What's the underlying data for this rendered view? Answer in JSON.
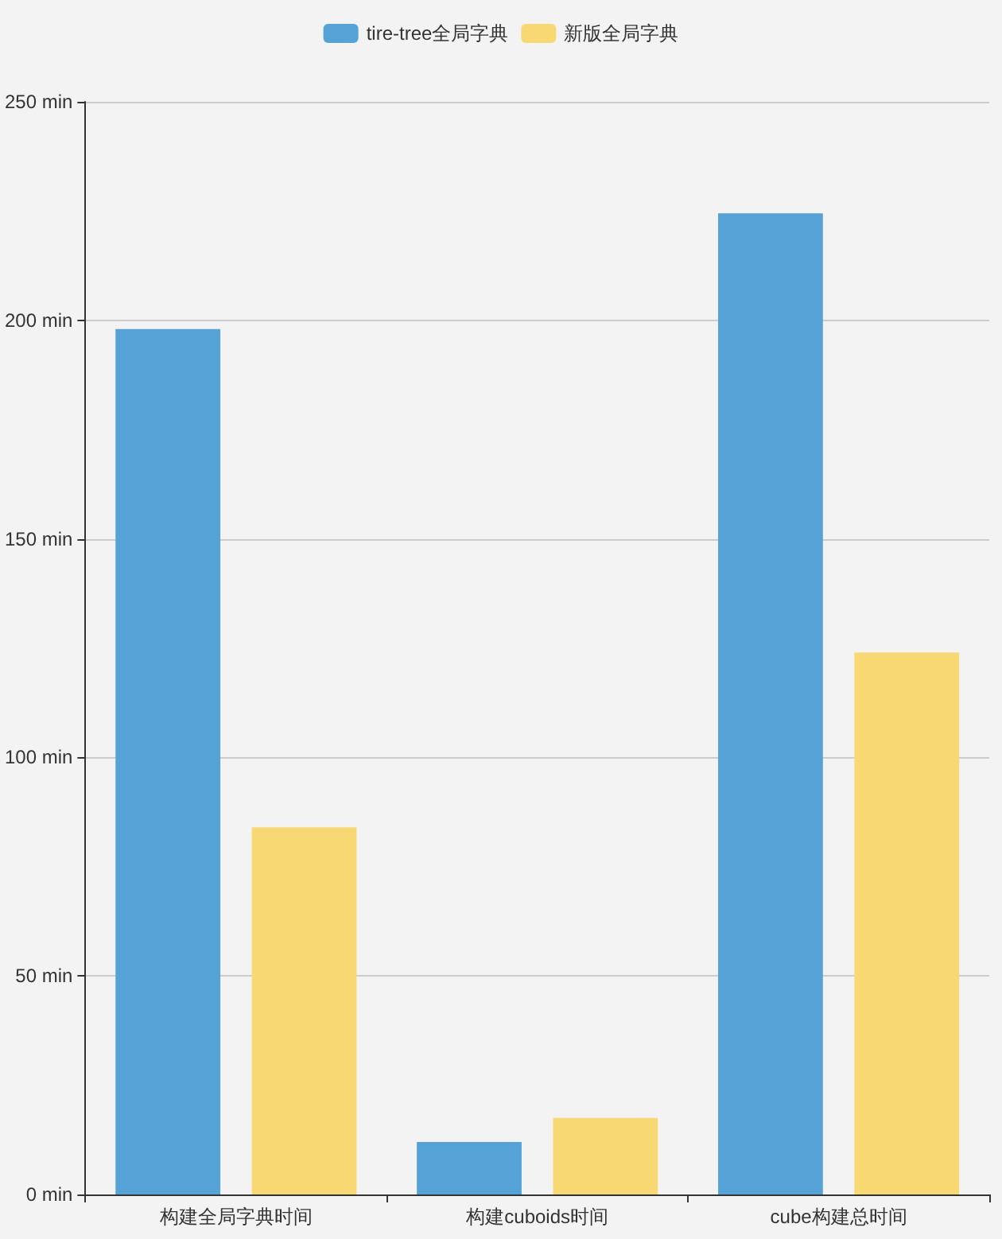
{
  "chart_data": {
    "type": "bar",
    "categories": [
      "构建全局字典时间",
      "构建cuboids时间",
      "cube构建总时间"
    ],
    "series": [
      {
        "name": "tire-tree全局字典",
        "color": "#55a2d6",
        "values": [
          198,
          12,
          224.5
        ]
      },
      {
        "name": "新版全局字典",
        "color": "#f8d872",
        "values": [
          84,
          17.5,
          124
        ]
      }
    ],
    "ylim": [
      0,
      250
    ],
    "yticks": [
      {
        "value": 0,
        "label": "0 min"
      },
      {
        "value": 50,
        "label": "50 min"
      },
      {
        "value": 100,
        "label": "100 min"
      },
      {
        "value": 150,
        "label": "150 min"
      },
      {
        "value": 200,
        "label": "200 min"
      },
      {
        "value": 250,
        "label": "250 min"
      }
    ],
    "grid": "y",
    "legend": "top"
  }
}
